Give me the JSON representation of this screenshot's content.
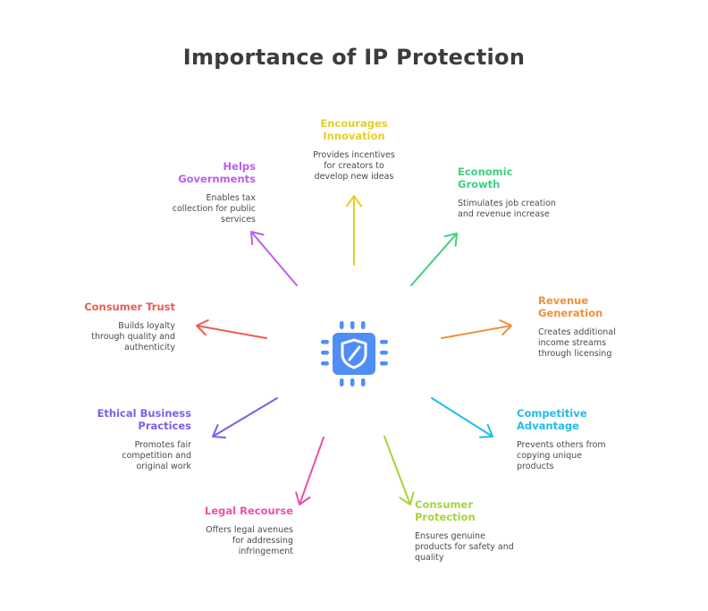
{
  "title": "Importance of IP Protection",
  "center_icon": "shield-chip-icon",
  "colors": {
    "title": "#3c3c3c",
    "center_icon": "#4f8ef7",
    "description": "#4a4a4a"
  },
  "items": [
    {
      "id": "encourages-innovation",
      "title": "Encourages\nInnovation",
      "description": "Provides incentives\nfor creators to\ndevelop new ideas",
      "color": "#e3cf2b",
      "icon": "arrow-up-icon"
    },
    {
      "id": "economic-growth",
      "title": "Economic\nGrowth",
      "description": "Stimulates job creation\nand revenue increase",
      "color": "#3fcf7e",
      "icon": "arrow-up-right-icon"
    },
    {
      "id": "revenue-generation",
      "title": "Revenue\nGeneration",
      "description": "Creates additional\nincome streams\nthrough licensing",
      "color": "#f0903a",
      "icon": "arrow-right-icon"
    },
    {
      "id": "competitive-advantage",
      "title": "Competitive\nAdvantage",
      "description": "Prevents others from\ncopying unique\nproducts",
      "color": "#22bde8",
      "icon": "arrow-down-right-icon"
    },
    {
      "id": "consumer-protection",
      "title": "Consumer\nProtection",
      "description": "Ensures genuine\nproducts for safety and\nquality",
      "color": "#a5d43a",
      "icon": "arrow-down-icon"
    },
    {
      "id": "legal-recourse",
      "title": "Legal Recourse",
      "description": "Offers legal avenues\nfor addressing\ninfringement",
      "color": "#ec4fa8",
      "icon": "arrow-down-icon"
    },
    {
      "id": "ethical-business-practices",
      "title": "Ethical Business\nPractices",
      "description": "Promotes fair\ncompetition and\noriginal work",
      "color": "#7f5ee8",
      "icon": "arrow-down-left-icon"
    },
    {
      "id": "consumer-trust",
      "title": "Consumer Trust",
      "description": "Builds loyalty\nthrough quality and\nauthenticity",
      "color": "#ee5b52",
      "icon": "arrow-left-icon"
    },
    {
      "id": "helps-governments",
      "title": "Helps\nGovernments",
      "description": "Enables tax\ncollection for public\nservices",
      "color": "#b95ff0",
      "icon": "arrow-up-left-icon"
    }
  ]
}
